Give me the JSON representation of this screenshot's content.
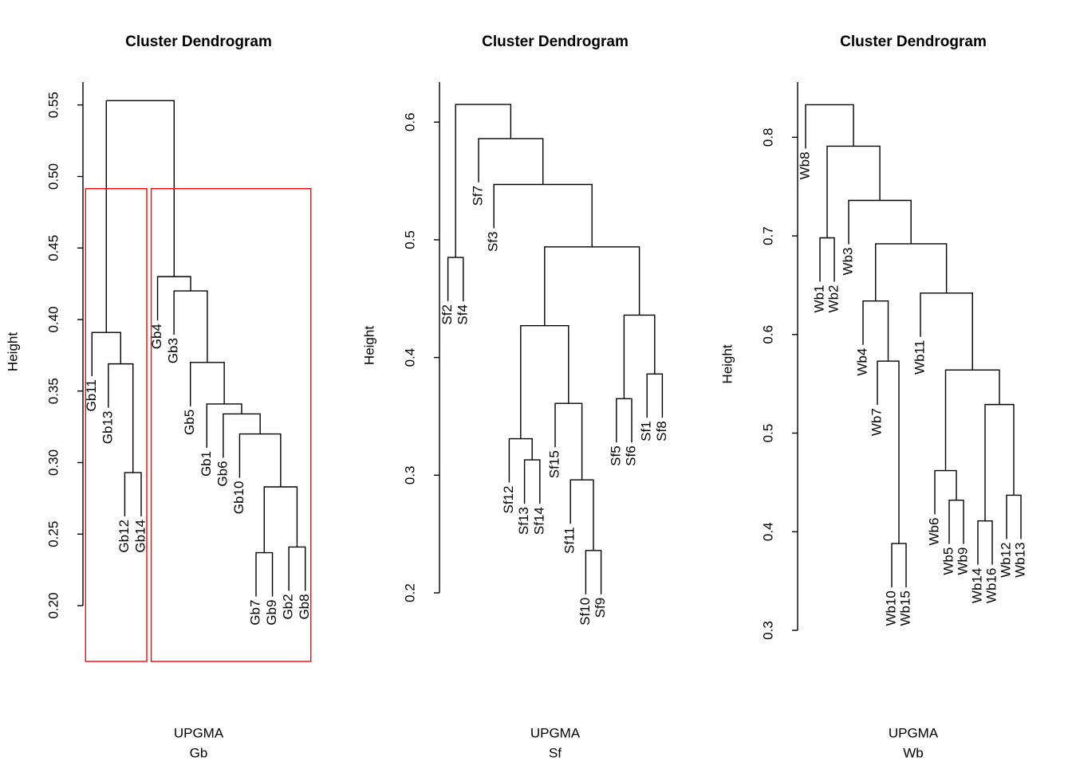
{
  "chart_data": [
    {
      "type": "dendrogram",
      "title": "Cluster Dendrogram",
      "xlabel": "UPGMA",
      "sub": "Gb",
      "ylabel": "Height",
      "color": "#000000",
      "cluster_box_color": "#ff0000",
      "ylim": [
        0.2,
        0.566
      ],
      "yticks": [
        {
          "value": 0.2,
          "label": "0.20"
        },
        0.25,
        {
          "value": 0.3,
          "label": "0.30"
        },
        0.35,
        {
          "value": 0.4,
          "label": "0.40"
        },
        0.45,
        {
          "value": 0.5,
          "label": "0.50"
        },
        0.55
      ],
      "tree": {
        "height": 0.553,
        "children": [
          {
            "height": 0.391,
            "children": [
              {
                "label": "Gb11"
              },
              {
                "height": 0.369,
                "children": [
                  {
                    "label": "Gb13"
                  },
                  {
                    "height": 0.293,
                    "children": [
                      {
                        "label": "Gb12"
                      },
                      {
                        "label": "Gb14"
                      }
                    ]
                  }
                ]
              }
            ]
          },
          {
            "height": 0.43,
            "children": [
              {
                "label": "Gb4"
              },
              {
                "height": 0.42,
                "children": [
                  {
                    "label": "Gb3"
                  },
                  {
                    "height": 0.37,
                    "children": [
                      {
                        "label": "Gb5"
                      },
                      {
                        "height": 0.341,
                        "children": [
                          {
                            "label": "Gb1"
                          },
                          {
                            "height": 0.334,
                            "children": [
                              {
                                "label": "Gb6"
                              },
                              {
                                "height": 0.32,
                                "children": [
                                  {
                                    "label": "Gb10"
                                  },
                                  {
                                    "height": 0.283,
                                    "children": [
                                      {
                                        "height": 0.237,
                                        "children": [
                                          {
                                            "label": "Gb7"
                                          },
                                          {
                                            "label": "Gb9"
                                          }
                                        ]
                                      },
                                      {
                                        "height": 0.241,
                                        "children": [
                                          {
                                            "label": "Gb2"
                                          },
                                          {
                                            "label": "Gb8"
                                          }
                                        ]
                                      }
                                    ]
                                  }
                                ]
                              }
                            ]
                          }
                        ]
                      }
                    ]
                  }
                ]
              }
            ]
          }
        ]
      }
    },
    {
      "type": "dendrogram",
      "title": "Cluster Dendrogram",
      "xlabel": "UPGMA",
      "sub": "Sf",
      "ylabel": "Height",
      "color": "#000000",
      "ylim": [
        0.2,
        0.634
      ],
      "yticks": [
        0.2,
        0.3,
        0.4,
        0.5,
        0.6
      ],
      "tree": {
        "height": 0.615,
        "children": [
          {
            "height": 0.485,
            "children": [
              {
                "label": "Sf2"
              },
              {
                "label": "Sf4"
              }
            ]
          },
          {
            "height": 0.586,
            "children": [
              {
                "label": "Sf7"
              },
              {
                "height": 0.547,
                "children": [
                  {
                    "label": "Sf3"
                  },
                  {
                    "height": 0.494,
                    "children": [
                      {
                        "height": 0.427,
                        "children": [
                          {
                            "height": 0.331,
                            "children": [
                              {
                                "label": "Sf12"
                              },
                              {
                                "height": 0.313,
                                "children": [
                                  {
                                    "label": "Sf13"
                                  },
                                  {
                                    "label": "Sf14"
                                  }
                                ]
                              }
                            ]
                          },
                          {
                            "height": 0.361,
                            "children": [
                              {
                                "label": "Sf15"
                              },
                              {
                                "height": 0.296,
                                "children": [
                                  {
                                    "label": "Sf11"
                                  },
                                  {
                                    "height": 0.236,
                                    "children": [
                                      {
                                        "label": "Sf10"
                                      },
                                      {
                                        "label": "Sf9"
                                      }
                                    ]
                                  }
                                ]
                              }
                            ]
                          }
                        ]
                      },
                      {
                        "height": 0.436,
                        "children": [
                          {
                            "height": 0.365,
                            "children": [
                              {
                                "label": "Sf5"
                              },
                              {
                                "label": "Sf6"
                              }
                            ]
                          },
                          {
                            "height": 0.386,
                            "children": [
                              {
                                "label": "Sf1"
                              },
                              {
                                "label": "Sf8"
                              }
                            ]
                          }
                        ]
                      }
                    ]
                  }
                ]
              }
            ]
          }
        ]
      }
    },
    {
      "type": "dendrogram",
      "title": "Cluster Dendrogram",
      "xlabel": "UPGMA",
      "sub": "Wb",
      "ylabel": "Height",
      "color": "#000000",
      "ylim": [
        0.3,
        0.856
      ],
      "yticks": [
        0.3,
        0.4,
        0.5,
        0.6,
        0.7,
        0.8
      ],
      "tree": {
        "height": 0.833,
        "children": [
          {
            "label": "Wb8"
          },
          {
            "height": 0.791,
            "children": [
              {
                "height": 0.698,
                "children": [
                  {
                    "label": "Wb1"
                  },
                  {
                    "label": "Wb2"
                  }
                ]
              },
              {
                "height": 0.736,
                "children": [
                  {
                    "label": "Wb3"
                  },
                  {
                    "height": 0.692,
                    "children": [
                      {
                        "height": 0.634,
                        "children": [
                          {
                            "label": "Wb4"
                          },
                          {
                            "height": 0.573,
                            "children": [
                              {
                                "label": "Wb7"
                              },
                              {
                                "height": 0.388,
                                "children": [
                                  {
                                    "label": "Wb10"
                                  },
                                  {
                                    "label": "Wb15"
                                  }
                                ]
                              }
                            ]
                          }
                        ]
                      },
                      {
                        "height": 0.642,
                        "children": [
                          {
                            "label": "Wb11"
                          },
                          {
                            "height": 0.564,
                            "children": [
                              {
                                "height": 0.462,
                                "children": [
                                  {
                                    "label": "Wb6"
                                  },
                                  {
                                    "height": 0.432,
                                    "children": [
                                      {
                                        "label": "Wb5"
                                      },
                                      {
                                        "label": "Wb9"
                                      }
                                    ]
                                  }
                                ]
                              },
                              {
                                "height": 0.529,
                                "children": [
                                  {
                                    "height": 0.411,
                                    "children": [
                                      {
                                        "label": "Wb14"
                                      },
                                      {
                                        "label": "Wb16"
                                      }
                                    ]
                                  },
                                  {
                                    "height": 0.437,
                                    "children": [
                                      {
                                        "label": "Wb12"
                                      },
                                      {
                                        "label": "Wb13"
                                      }
                                    ]
                                  }
                                ]
                              }
                            ]
                          }
                        ]
                      }
                    ]
                  }
                ]
              }
            ]
          }
        ]
      }
    }
  ]
}
